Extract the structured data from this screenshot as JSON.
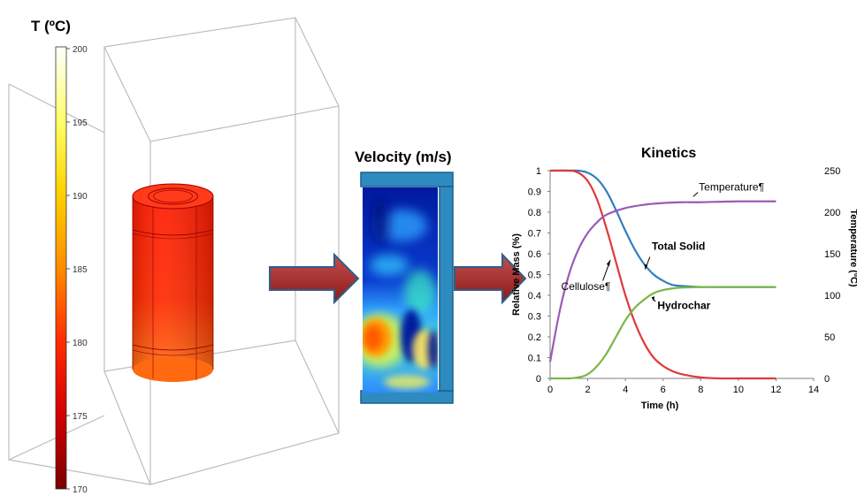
{
  "temperature_panel": {
    "title": "T (ºC)",
    "colorbar_ticks": [
      "200",
      "195",
      "190",
      "185",
      "180",
      "175",
      "170"
    ],
    "colorbar_colors": [
      "#ffffff",
      "#ffff66",
      "#ffd200",
      "#ff8c00",
      "#ff2a00",
      "#d40000",
      "#7a0000"
    ]
  },
  "velocity_panel": {
    "title": "Velocity (m/s)"
  },
  "arrows": {
    "color": "#a52a2a",
    "border": "#2e5f8a"
  },
  "chart_data": {
    "type": "line",
    "title": "Kinetics",
    "xlabel": "Time (h)",
    "ylabel": "Relative Mass (%)",
    "ylabel_right": "Temperature (ºC)",
    "xlim": [
      0,
      14
    ],
    "ylim": [
      0,
      1
    ],
    "ylim_right": [
      0,
      250
    ],
    "x_ticks": [
      "0",
      "2",
      "4",
      "6",
      "8",
      "10",
      "12",
      "14"
    ],
    "y_ticks": [
      "0",
      "0.1",
      "0.2",
      "0.3",
      "0.4",
      "0.5",
      "0.6",
      "0.7",
      "0.8",
      "0.9",
      "1"
    ],
    "y_ticks_right": [
      "0",
      "50",
      "100",
      "150",
      "200",
      "250"
    ],
    "grid": false,
    "series": [
      {
        "name": "Total Solid",
        "color": "#2f7fc1",
        "axis": "left",
        "x": [
          0,
          1,
          1.5,
          2,
          2.5,
          3,
          3.5,
          4,
          4.5,
          5,
          5.5,
          6,
          6.5,
          7,
          8,
          9,
          10,
          12
        ],
        "y": [
          1,
          1,
          1,
          0.99,
          0.96,
          0.9,
          0.81,
          0.71,
          0.62,
          0.55,
          0.5,
          0.47,
          0.45,
          0.445,
          0.44,
          0.44,
          0.44,
          0.44
        ]
      },
      {
        "name": "Cellulose",
        "color": "#e0393a",
        "axis": "left",
        "x": [
          0,
          1,
          1.5,
          2,
          2.5,
          3,
          3.5,
          4,
          4.5,
          5,
          5.5,
          6,
          6.5,
          7,
          8,
          9,
          10,
          12
        ],
        "y": [
          1,
          1,
          0.99,
          0.95,
          0.86,
          0.72,
          0.56,
          0.4,
          0.27,
          0.17,
          0.1,
          0.06,
          0.035,
          0.02,
          0.005,
          0,
          0,
          0
        ]
      },
      {
        "name": "Hydrochar",
        "color": "#7ab648",
        "axis": "left",
        "x": [
          0,
          1,
          1.5,
          2,
          2.5,
          3,
          3.5,
          4,
          4.5,
          5,
          5.5,
          6,
          6.5,
          7,
          8,
          9,
          10,
          12
        ],
        "y": [
          0,
          0,
          0.005,
          0.02,
          0.06,
          0.12,
          0.2,
          0.28,
          0.34,
          0.38,
          0.41,
          0.425,
          0.433,
          0.437,
          0.44,
          0.44,
          0.44,
          0.44
        ]
      },
      {
        "name": "Temperature",
        "color": "#9b59b6",
        "axis": "right",
        "x": [
          0,
          0.5,
          1,
          1.5,
          2,
          2.5,
          3,
          4,
          5,
          6,
          7,
          8,
          10,
          12
        ],
        "y": [
          20,
          80,
          125,
          155,
          175,
          188,
          197,
          205,
          209,
          211,
          212,
          212,
          213,
          213
        ]
      }
    ],
    "annotations": [
      {
        "text": "Temperature¶",
        "style": "normal"
      },
      {
        "text": "Total Solid",
        "style": "bold"
      },
      {
        "text": "Cellulose¶",
        "style": "normal"
      },
      {
        "text": "Hydrochar",
        "style": "bold"
      }
    ]
  }
}
